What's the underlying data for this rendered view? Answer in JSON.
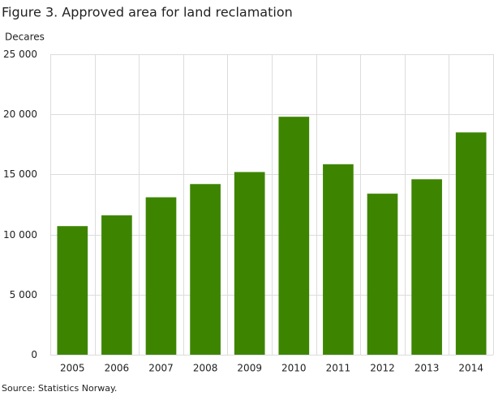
{
  "chart_data": {
    "type": "bar",
    "title": "Figure 3. Approved area for land reclamation",
    "y_label": "Decares",
    "source": "Source: Statistics Norway.",
    "categories": [
      "2005",
      "2006",
      "2007",
      "2008",
      "2009",
      "2010",
      "2011",
      "2012",
      "2013",
      "2014"
    ],
    "values": [
      10700,
      11600,
      13100,
      14200,
      15200,
      19800,
      15850,
      13400,
      14600,
      18500
    ],
    "color": "#3d8501",
    "ylim": [
      0,
      25000
    ],
    "yticks": [
      0,
      {
        "value": 5000,
        "label": "5 000"
      },
      {
        "value": 10000,
        "label": "10 000"
      },
      {
        "value": 15000,
        "label": "15 000"
      },
      {
        "value": 20000,
        "label": "20 000"
      },
      {
        "value": 25000,
        "label": "25 000"
      }
    ],
    "grid": true
  }
}
